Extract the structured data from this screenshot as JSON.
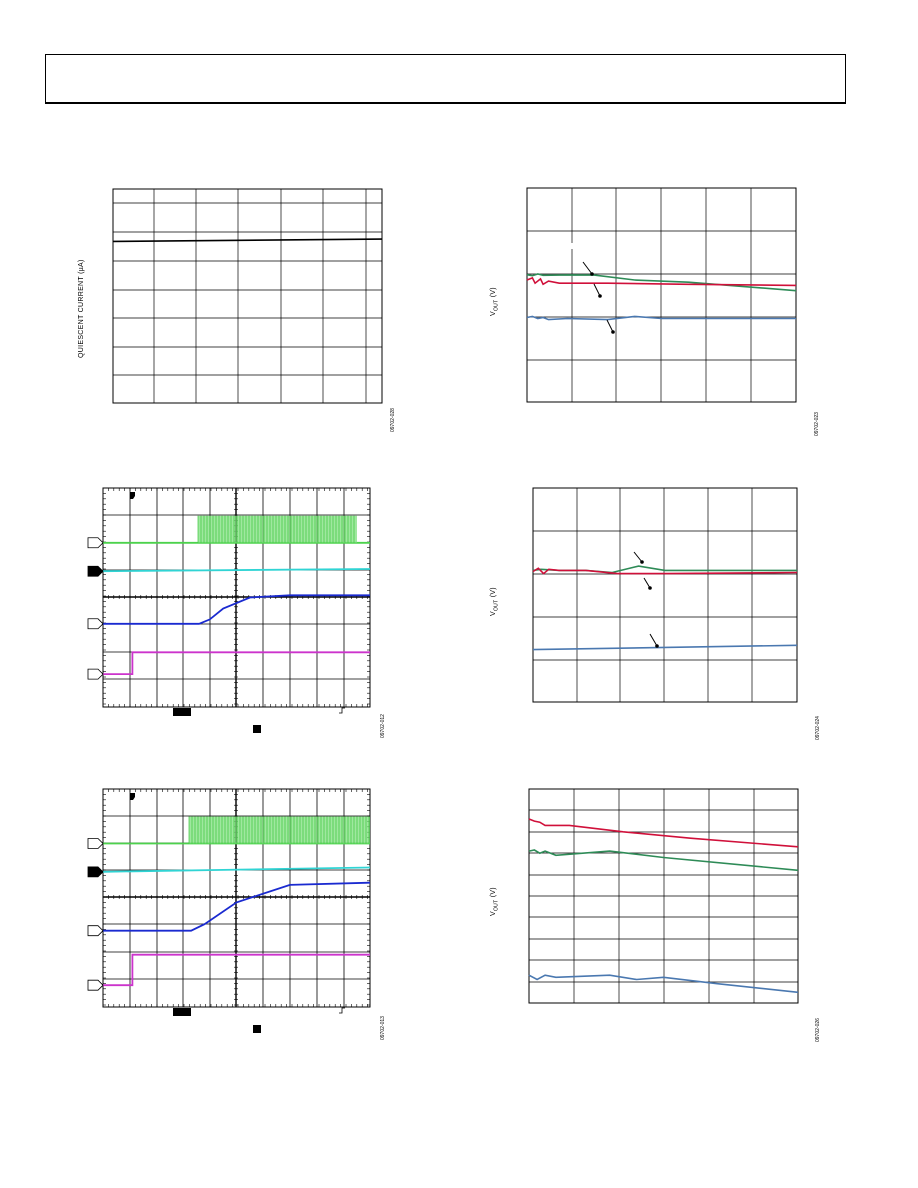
{
  "chart_data": [
    {
      "id": "quiescent",
      "type": "line",
      "ylabel": "QUIESCENT CURRENT (µA)",
      "figure_code": "09702-028",
      "grid": true,
      "series": [
        {
          "name": "",
          "color": "#000000",
          "x": [
            0,
            1
          ],
          "y": [
            0.755,
            0.766
          ]
        }
      ]
    },
    {
      "id": "vout1",
      "type": "line",
      "ylabel": "V_OUT (V)",
      "figure_code": "09702-023",
      "grid": true,
      "series": [
        {
          "name": "",
          "color": "#2e8b57",
          "x": [
            0,
            0.02,
            0.04,
            0.06,
            0.15,
            0.25,
            0.4,
            0.6,
            0.8,
            1.0
          ],
          "y": [
            0.595,
            0.59,
            0.598,
            0.592,
            0.594,
            0.593,
            0.57,
            0.56,
            0.54,
            0.52
          ]
        },
        {
          "name": "",
          "color": "#d0103a",
          "x": [
            0,
            0.02,
            0.03,
            0.05,
            0.06,
            0.08,
            0.12,
            0.3,
            0.6,
            1.0
          ],
          "y": [
            0.57,
            0.58,
            0.555,
            0.575,
            0.55,
            0.565,
            0.555,
            0.555,
            0.55,
            0.545
          ]
        },
        {
          "name": "",
          "color": "#4a78b0",
          "x": [
            0,
            0.02,
            0.04,
            0.06,
            0.08,
            0.15,
            0.3,
            0.4,
            0.5,
            0.6,
            1.0
          ],
          "y": [
            0.395,
            0.4,
            0.39,
            0.395,
            0.385,
            0.39,
            0.385,
            0.4,
            0.39,
            0.39,
            0.39
          ]
        }
      ]
    },
    {
      "id": "scope1",
      "type": "line",
      "ylabel": "",
      "figure_code": "09702-012",
      "grid": true,
      "series": [
        {
          "name": "",
          "color": "#4cd24c",
          "x": [
            0,
            1
          ],
          "y": [
            0.75,
            0.75
          ]
        },
        {
          "name": "",
          "color": "#30d4d4",
          "x": [
            0,
            1
          ],
          "y": [
            0.62,
            0.63
          ]
        },
        {
          "name": "",
          "color": "#1a2ad0",
          "x": [
            0,
            0.36,
            0.4,
            0.45,
            0.55,
            0.7,
            1.0
          ],
          "y": [
            0.38,
            0.38,
            0.4,
            0.45,
            0.5,
            0.51,
            0.51
          ]
        },
        {
          "name": "",
          "color": "#cc33cc",
          "x": [
            0,
            0.11,
            0.11,
            1.0
          ],
          "y": [
            0.15,
            0.15,
            0.25,
            0.25
          ]
        }
      ]
    },
    {
      "id": "vout2",
      "type": "line",
      "ylabel": "V_OUT (V)",
      "figure_code": "09702-024",
      "grid": true,
      "series": [
        {
          "name": "",
          "color": "#2e8b57",
          "x": [
            0,
            0.03,
            0.1,
            0.2,
            0.3,
            0.4,
            0.5,
            0.7,
            1.0
          ],
          "y": [
            0.615,
            0.62,
            0.615,
            0.615,
            0.605,
            0.635,
            0.615,
            0.615,
            0.615
          ]
        },
        {
          "name": "",
          "color": "#d0103a",
          "x": [
            0,
            0.02,
            0.04,
            0.06,
            0.1,
            0.2,
            0.32,
            0.5,
            1.0
          ],
          "y": [
            0.61,
            0.625,
            0.6,
            0.62,
            0.615,
            0.615,
            0.6,
            0.6,
            0.605
          ]
        },
        {
          "name": "",
          "color": "#4a78b0",
          "x": [
            0,
            1
          ],
          "y": [
            0.245,
            0.265
          ]
        }
      ]
    },
    {
      "id": "scope2",
      "type": "line",
      "ylabel": "",
      "figure_code": "09702-013",
      "grid": true,
      "series": [
        {
          "name": "",
          "color": "#4cd24c",
          "x": [
            0,
            1
          ],
          "y": [
            0.75,
            0.75
          ]
        },
        {
          "name": "",
          "color": "#30d4d4",
          "x": [
            0,
            1
          ],
          "y": [
            0.62,
            0.64
          ]
        },
        {
          "name": "",
          "color": "#1a2ad0",
          "x": [
            0,
            0.33,
            0.38,
            0.5,
            0.7,
            1.0
          ],
          "y": [
            0.35,
            0.35,
            0.38,
            0.48,
            0.56,
            0.57
          ]
        },
        {
          "name": "",
          "color": "#cc33cc",
          "x": [
            0,
            0.11,
            0.11,
            1.0
          ],
          "y": [
            0.1,
            0.1,
            0.24,
            0.24
          ]
        }
      ]
    },
    {
      "id": "vout3",
      "type": "line",
      "ylabel": "V_OUT (V)",
      "figure_code": "09702-026",
      "grid": true,
      "series": [
        {
          "name": "",
          "color": "#d0103a",
          "x": [
            0,
            0.02,
            0.04,
            0.06,
            0.15,
            0.35,
            0.6,
            1.0
          ],
          "y": [
            0.86,
            0.85,
            0.845,
            0.83,
            0.83,
            0.8,
            0.77,
            0.73
          ]
        },
        {
          "name": "",
          "color": "#2e8b57",
          "x": [
            0,
            0.02,
            0.04,
            0.06,
            0.1,
            0.3,
            0.5,
            1.0
          ],
          "y": [
            0.71,
            0.715,
            0.7,
            0.71,
            0.69,
            0.71,
            0.68,
            0.62
          ]
        },
        {
          "name": "",
          "color": "#4a78b0",
          "x": [
            0,
            0.03,
            0.06,
            0.1,
            0.3,
            0.4,
            0.5,
            0.7,
            1.0
          ],
          "y": [
            0.13,
            0.11,
            0.13,
            0.12,
            0.13,
            0.11,
            0.12,
            0.09,
            0.05
          ]
        }
      ]
    }
  ]
}
